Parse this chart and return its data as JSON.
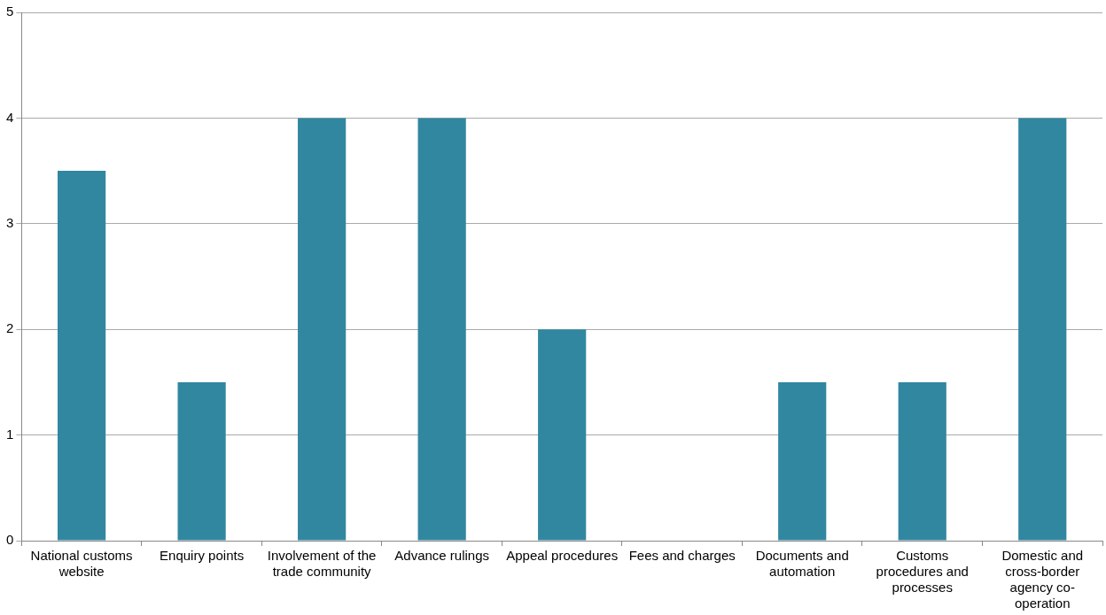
{
  "chart_data": {
    "type": "bar",
    "categories": [
      "National customs website",
      "Enquiry points",
      "Involvement of the trade community",
      "Advance rulings",
      "Appeal procedures",
      "Fees and charges",
      "Documents and automation",
      "Customs procedures and processes",
      "Domestic and cross-border agency co-operation"
    ],
    "values": [
      3.5,
      1.5,
      4,
      4,
      2,
      0,
      1.5,
      1.5,
      4
    ],
    "color": "#31879f",
    "ylim": [
      0,
      5
    ],
    "yticks": [
      0,
      1,
      2,
      3,
      4,
      5
    ],
    "grid": "y",
    "legend": false
  }
}
